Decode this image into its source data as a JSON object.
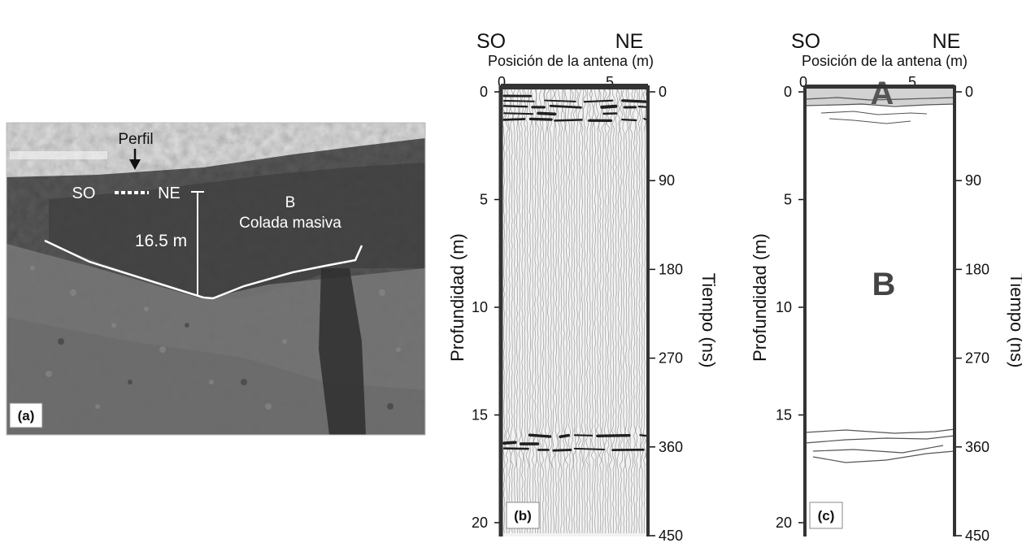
{
  "panel_a": {
    "tag": "(a)",
    "perfil_label": "Perfil",
    "so_label": "SO",
    "ne_label": "NE",
    "height_label": "16.5 m",
    "unit_letter": "B",
    "unit_name": "Colada masiva"
  },
  "panel_b": {
    "tag": "(b)",
    "left_title": "SO",
    "right_title": "NE",
    "x_axis_label": "Posición de la antena (m)",
    "x_ticks": [
      "0",
      "5"
    ],
    "y_left_label": "Profundidad (m)",
    "y_left_ticks": [
      "0",
      "5",
      "10",
      "15",
      "20"
    ],
    "y_right_label": "Tiempo (ns)",
    "y_right_ticks": [
      "0",
      "90",
      "180",
      "270",
      "360",
      "450"
    ]
  },
  "panel_c": {
    "tag": "(c)",
    "left_title": "SO",
    "right_title": "NE",
    "x_axis_label": "Posición de la antena (m)",
    "x_ticks": [
      "0",
      "5"
    ],
    "y_left_label": "Profundidad (m)",
    "y_left_ticks": [
      "0",
      "5",
      "10",
      "15",
      "20"
    ],
    "y_right_label": "Tiempo (ns)",
    "y_right_ticks": [
      "0",
      "90",
      "180",
      "270",
      "360",
      "450"
    ],
    "unit_a_label": "A",
    "unit_b_label": "B"
  },
  "colors": {
    "photo_sky": "#eeeeee",
    "photo_rock": "#5c5c5c",
    "layer_a_fill": "#d2d2d2",
    "frame": "#333333"
  }
}
